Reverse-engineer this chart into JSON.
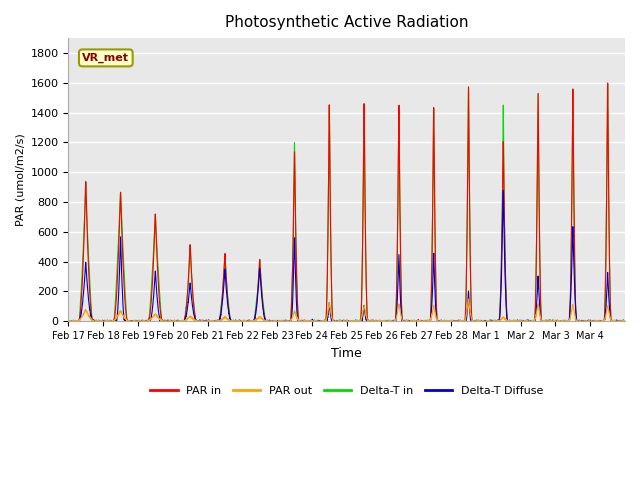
{
  "title": "Photosynthetic Active Radiation",
  "ylabel": "PAR (umol/m2/s)",
  "xlabel": "Time",
  "annotation": "VR_met",
  "ylim": [
    0,
    1900
  ],
  "yticks": [
    0,
    200,
    400,
    600,
    800,
    1000,
    1200,
    1400,
    1600,
    1800
  ],
  "plot_bg_color": "#e8e8e8",
  "fig_bg_color": "#ffffff",
  "legend_entries": [
    "PAR in",
    "PAR out",
    "Delta-T in",
    "Delta-T Diffuse"
  ],
  "line_colors": {
    "par_in": "#ff0000",
    "par_out": "#ffa500",
    "delta_t_in": "#00dd00",
    "delta_t_diffuse": "#0000cc"
  },
  "num_days": 16,
  "points_per_day": 288,
  "figsize": [
    6.4,
    4.8
  ],
  "dpi": 100,
  "par_in_peaks": [
    950,
    880,
    730,
    520,
    460,
    420,
    1170,
    1500,
    1510,
    1500,
    1480,
    1620,
    1240,
    1580,
    1610,
    1650
  ],
  "par_out_peaks": [
    80,
    70,
    50,
    35,
    30,
    30,
    70,
    120,
    110,
    120,
    110,
    150,
    30,
    120,
    120,
    110
  ],
  "delta_t_in_peaks": [
    870,
    870,
    700,
    390,
    370,
    360,
    1240,
    1420,
    1440,
    1440,
    1220,
    1530,
    1500,
    1520,
    1570,
    1590
  ],
  "delta_t_diff_peaks": [
    400,
    580,
    340,
    260,
    350,
    360,
    580,
    130,
    110,
    460,
    470,
    210,
    900,
    310,
    650,
    340
  ],
  "peak_widths_hours": [
    5.0,
    5.0,
    5.0,
    4.5,
    4.5,
    4.5,
    3.0,
    2.5,
    2.5,
    2.5,
    2.5,
    2.5,
    3.0,
    2.5,
    2.5,
    2.5
  ],
  "green_widths_hours": [
    4.5,
    4.5,
    4.5,
    4.0,
    4.0,
    4.0,
    1.5,
    1.2,
    1.2,
    1.2,
    1.2,
    1.2,
    1.5,
    1.2,
    1.2,
    1.2
  ],
  "blue_widths_hours": [
    5.0,
    3.0,
    4.0,
    4.5,
    4.5,
    4.5,
    2.5,
    2.0,
    2.0,
    2.5,
    2.5,
    2.0,
    3.0,
    2.5,
    3.0,
    2.5
  ],
  "xtick_labels": [
    "Feb 17",
    "Feb 18",
    "Feb 19",
    "Feb 20",
    "Feb 21",
    "Feb 22",
    "Feb 23",
    "Feb 24",
    "Feb 25",
    "Feb 26",
    "Feb 27",
    "Feb 28",
    "Mar 1",
    "Mar 2",
    "Mar 3",
    "Mar 4"
  ]
}
